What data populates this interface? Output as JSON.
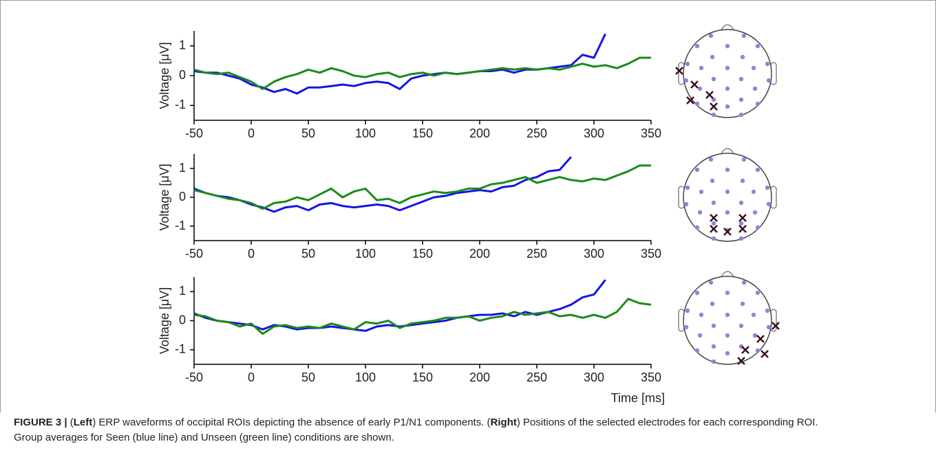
{
  "chart_data": [
    {
      "type": "line",
      "y_label": "Voltage [μV]",
      "x": [
        -50,
        -40,
        -30,
        -20,
        -10,
        0,
        10,
        20,
        30,
        40,
        50,
        60,
        70,
        80,
        90,
        100,
        110,
        120,
        130,
        140,
        150,
        160,
        170,
        180,
        190,
        200,
        210,
        220,
        230,
        240,
        250,
        260,
        270,
        280,
        290,
        300,
        310,
        320,
        330,
        340,
        350
      ],
      "xlim": [
        -50,
        350
      ],
      "xticks": [
        -50,
        0,
        50,
        100,
        150,
        200,
        250,
        300,
        350
      ],
      "ylim": [
        -1.5,
        1.5
      ],
      "yticks": [
        -1,
        0,
        1
      ],
      "series": [
        {
          "color": "#1414e6",
          "values": [
            0.15,
            0.1,
            0.1,
            0.0,
            -0.1,
            -0.3,
            -0.4,
            -0.55,
            -0.45,
            -0.6,
            -0.4,
            -0.4,
            -0.35,
            -0.3,
            -0.35,
            -0.25,
            -0.2,
            -0.25,
            -0.45,
            -0.1,
            0.0,
            0.05,
            0.1,
            0.05,
            0.1,
            0.15,
            0.15,
            0.2,
            0.1,
            0.2,
            0.2,
            0.25,
            0.3,
            0.35,
            0.7,
            0.6,
            1.4,
            null,
            null,
            null,
            null
          ]
        },
        {
          "color": "#1a8a1a",
          "values": [
            0.2,
            0.1,
            0.05,
            0.1,
            -0.05,
            -0.2,
            -0.45,
            -0.2,
            -0.05,
            0.05,
            0.2,
            0.1,
            0.25,
            0.15,
            0.0,
            -0.05,
            0.05,
            0.1,
            -0.05,
            0.05,
            0.1,
            0.0,
            0.1,
            0.05,
            0.1,
            0.15,
            0.2,
            0.25,
            0.2,
            0.25,
            0.2,
            0.25,
            0.2,
            0.3,
            0.4,
            0.3,
            0.35,
            0.25,
            0.4,
            0.6,
            0.6
          ]
        }
      ]
    },
    {
      "type": "line",
      "y_label": "Voltage [μV]",
      "x": [
        -50,
        -40,
        -30,
        -20,
        -10,
        0,
        10,
        20,
        30,
        40,
        50,
        60,
        70,
        80,
        90,
        100,
        110,
        120,
        130,
        140,
        150,
        160,
        170,
        180,
        190,
        200,
        210,
        220,
        230,
        240,
        250,
        260,
        270,
        280,
        290,
        300,
        310,
        320,
        330,
        340,
        350
      ],
      "xlim": [
        -50,
        350
      ],
      "xticks": [
        -50,
        0,
        50,
        100,
        150,
        200,
        250,
        300,
        350
      ],
      "ylim": [
        -1.5,
        1.5
      ],
      "yticks": [
        -1,
        0,
        1
      ],
      "series": [
        {
          "color": "#1414e6",
          "values": [
            0.3,
            0.15,
            0.05,
            0.0,
            -0.1,
            -0.25,
            -0.35,
            -0.5,
            -0.35,
            -0.3,
            -0.45,
            -0.25,
            -0.2,
            -0.3,
            -0.35,
            -0.3,
            -0.25,
            -0.3,
            -0.45,
            -0.3,
            -0.15,
            0.0,
            0.05,
            0.15,
            0.2,
            0.25,
            0.2,
            0.35,
            0.4,
            0.6,
            0.7,
            0.9,
            0.95,
            1.4,
            null,
            null,
            null,
            null,
            null,
            null,
            null
          ]
        },
        {
          "color": "#1a8a1a",
          "values": [
            0.25,
            0.15,
            0.05,
            -0.05,
            -0.1,
            -0.2,
            -0.4,
            -0.2,
            -0.15,
            0.0,
            -0.1,
            0.1,
            0.3,
            0.0,
            0.2,
            0.3,
            -0.1,
            -0.05,
            -0.2,
            0.0,
            0.1,
            0.2,
            0.15,
            0.2,
            0.3,
            0.3,
            0.45,
            0.5,
            0.6,
            0.7,
            0.5,
            0.6,
            0.7,
            0.6,
            0.55,
            0.65,
            0.6,
            0.75,
            0.9,
            1.1,
            1.1
          ]
        }
      ]
    },
    {
      "type": "line",
      "y_label": "Voltage [μV]",
      "x_label": "Time [ms]",
      "x": [
        -50,
        -40,
        -30,
        -20,
        -10,
        0,
        10,
        20,
        30,
        40,
        50,
        60,
        70,
        80,
        90,
        100,
        110,
        120,
        130,
        140,
        150,
        160,
        170,
        180,
        190,
        200,
        210,
        220,
        230,
        240,
        250,
        260,
        270,
        280,
        290,
        300,
        310,
        320,
        330,
        340,
        350
      ],
      "xlim": [
        -50,
        350
      ],
      "xticks": [
        -50,
        0,
        50,
        100,
        150,
        200,
        250,
        300,
        350
      ],
      "ylim": [
        -1.5,
        1.5
      ],
      "yticks": [
        -1,
        0,
        1
      ],
      "series": [
        {
          "color": "#1414e6",
          "values": [
            0.25,
            0.1,
            0.0,
            -0.05,
            -0.1,
            -0.15,
            -0.3,
            -0.15,
            -0.2,
            -0.3,
            -0.25,
            -0.25,
            -0.2,
            -0.25,
            -0.3,
            -0.35,
            -0.2,
            -0.15,
            -0.2,
            -0.15,
            -0.1,
            -0.05,
            0.0,
            0.1,
            0.15,
            0.2,
            0.2,
            0.25,
            0.15,
            0.3,
            0.2,
            0.3,
            0.4,
            0.55,
            0.8,
            0.9,
            1.4,
            null,
            null,
            null,
            null
          ]
        },
        {
          "color": "#1a8a1a",
          "values": [
            0.2,
            0.15,
            0.0,
            -0.05,
            -0.2,
            -0.1,
            -0.45,
            -0.2,
            -0.15,
            -0.25,
            -0.2,
            -0.25,
            -0.1,
            -0.2,
            -0.3,
            -0.05,
            -0.1,
            0.0,
            -0.25,
            -0.1,
            -0.05,
            0.0,
            0.1,
            0.1,
            0.15,
            0.0,
            0.1,
            0.15,
            0.3,
            0.2,
            0.25,
            0.3,
            0.15,
            0.2,
            0.1,
            0.2,
            0.1,
            0.3,
            0.75,
            0.6,
            0.55
          ]
        }
      ]
    }
  ],
  "caption": [
    {
      "text": "FIGURE 3 |",
      "bold": true
    },
    {
      "text": " (",
      "bold": false
    },
    {
      "text": "Left",
      "bold": true
    },
    {
      "text": ") ERP waveforms of occipital ROIs depicting the absence of early P1/N1 components. (",
      "bold": false
    },
    {
      "text": "Right",
      "bold": true
    },
    {
      "text": ") Positions of the selected electrodes for each corresponding ROI. Group averages for Seen (blue line) and Unseen (green line) conditions are shown.",
      "bold": false
    }
  ]
}
